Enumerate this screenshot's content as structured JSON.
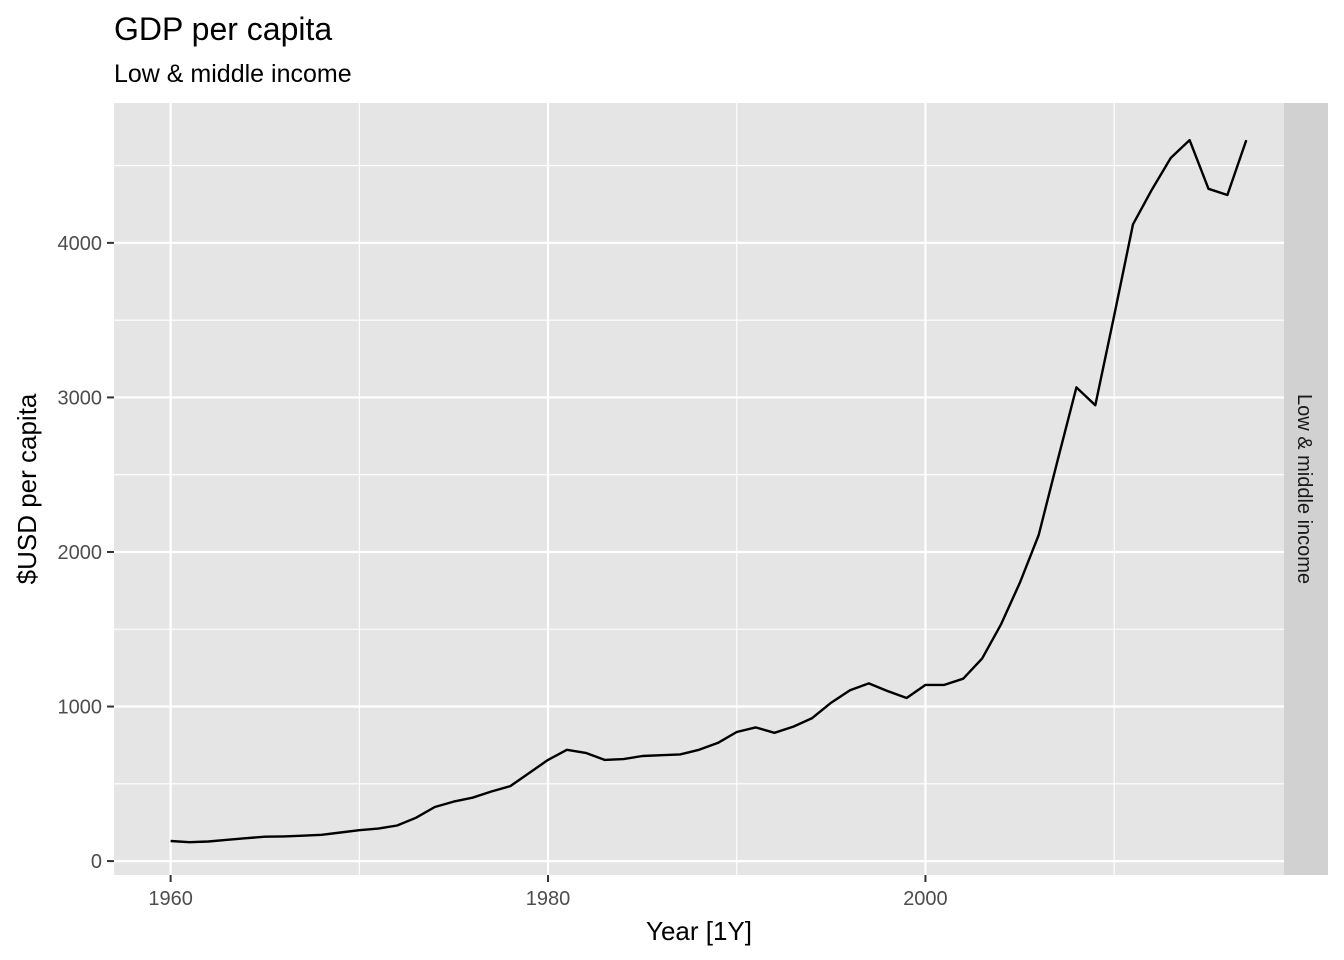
{
  "chart_data": {
    "type": "line",
    "title": "GDP per capita",
    "subtitle": "Low & middle income",
    "xlabel": "Year [1Y]",
    "ylabel": "$USD per capita",
    "facet_label": "Low & middle income",
    "xlim": [
      1957,
      2019
    ],
    "ylim": [
      -90,
      4905
    ],
    "x_ticks": [
      1960,
      1980,
      2000
    ],
    "x_tick_labels": [
      "1960",
      "1980",
      "2000"
    ],
    "x_minor_ticks": [
      1970,
      1990,
      2010
    ],
    "y_ticks": [
      0,
      1000,
      2000,
      3000,
      4000
    ],
    "y_tick_labels": [
      "0",
      "1000",
      "2000",
      "3000",
      "4000"
    ],
    "y_minor_ticks": [
      500,
      1500,
      2500,
      3500,
      4500
    ],
    "grid": true,
    "legend": "none",
    "colors": {
      "panel": "#e5e5e5",
      "grid": "#ffffff",
      "strip": "#d1d1d1",
      "line": "#000000",
      "tick": "#333333"
    },
    "series": [
      {
        "x": [
          1960,
          1961,
          1962,
          1963,
          1964,
          1965,
          1966,
          1967,
          1968,
          1969,
          1970,
          1971,
          1972,
          1973,
          1974,
          1975,
          1976,
          1977,
          1978,
          1979,
          1980,
          1981,
          1982,
          1983,
          1984,
          1985,
          1986,
          1987,
          1988,
          1989,
          1990,
          1991,
          1992,
          1993,
          1994,
          1995,
          1996,
          1997,
          1998,
          1999,
          2000,
          2001,
          2002,
          2003,
          2004,
          2005,
          2006,
          2007,
          2008,
          2009,
          2010,
          2011,
          2012,
          2013,
          2014,
          2015,
          2016,
          2017
        ],
        "y": [
          130,
          122,
          127,
          138,
          148,
          158,
          160,
          164,
          170,
          185,
          200,
          210,
          230,
          280,
          350,
          385,
          410,
          450,
          485,
          570,
          655,
          720,
          700,
          655,
          660,
          680,
          685,
          690,
          720,
          765,
          835,
          865,
          830,
          870,
          925,
          1025,
          1105,
          1150,
          1100,
          1055,
          1140,
          1140,
          1180,
          1310,
          1530,
          1800,
          2110,
          2590,
          3065,
          2950,
          3530,
          4120,
          4345,
          4550,
          4665,
          4350,
          4310,
          4665
        ]
      }
    ]
  }
}
